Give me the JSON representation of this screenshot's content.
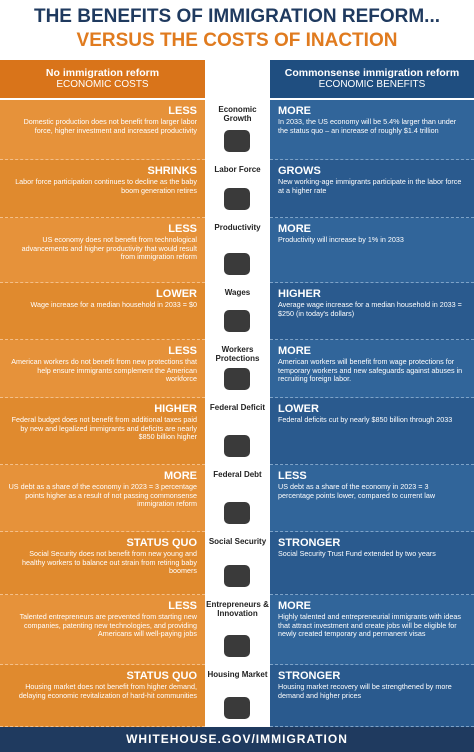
{
  "header": {
    "line1": "THE BENEFITS OF IMMIGRATION REFORM...",
    "line2": "VERSUS THE COSTS OF INACTION"
  },
  "left": {
    "title": "No immigration reform",
    "subtitle": "ECONOMIC COSTS"
  },
  "right": {
    "title": "Commonsense immigration reform",
    "subtitle": "ECONOMIC BENEFITS"
  },
  "rows": [
    {
      "category": "Economic Growth",
      "left_head": "LESS",
      "left_text": "Domestic production does not benefit from larger labor force, higher investment and increased productivity",
      "right_head": "MORE",
      "right_text": "In 2033, the US economy will be 5.4% larger than under the status quo – an increase of roughly $1.4 trillion"
    },
    {
      "category": "Labor Force",
      "left_head": "SHRINKS",
      "left_text": "Labor force participation continues to decline as the baby boom generation retires",
      "right_head": "GROWS",
      "right_text": "New working-age immigrants participate in the labor force at a higher rate"
    },
    {
      "category": "Productivity",
      "left_head": "LESS",
      "left_text": "US economy does not benefit from technological advancements and higher productivity that would result from immigration reform",
      "right_head": "MORE",
      "right_text": "Productivity will increase by 1% in 2033"
    },
    {
      "category": "Wages",
      "left_head": "LOWER",
      "left_text": "Wage increase for a median household in 2033 = $0",
      "right_head": "HIGHER",
      "right_text": "Average wage increase for a median household in 2033 = $250 (in today's dollars)"
    },
    {
      "category": "Workers Protections",
      "left_head": "LESS",
      "left_text": "American workers do not benefit from new protections that help ensure immigrants complement the American workforce",
      "right_head": "MORE",
      "right_text": "American workers will benefit from wage protections for temporary workers and new safeguards against abuses in recruiting foreign labor."
    },
    {
      "category": "Federal Deficit",
      "left_head": "HIGHER",
      "left_text": "Federal budget does not benefit from additional taxes paid by new and legalized immigrants and deficits are nearly $850 billion higher",
      "right_head": "LOWER",
      "right_text": "Federal deficits cut by nearly $850 billion through 2033"
    },
    {
      "category": "Federal Debt",
      "left_head": "MORE",
      "left_text": "US debt as a share of the economy in 2023 = 3 percentage points higher as a result of not passing commonsense immigration reform",
      "right_head": "LESS",
      "right_text": "US debt as a share of the economy in 2023 = 3 percentage points lower, compared to current law"
    },
    {
      "category": "Social Security",
      "left_head": "STATUS QUO",
      "left_text": "Social Security does not benefit from new young and healthy workers to balance out strain from retiring baby boomers",
      "right_head": "STRONGER",
      "right_text": "Social Security Trust Fund extended by two years"
    },
    {
      "category": "Entrepreneurs & Innovation",
      "left_head": "LESS",
      "left_text": "Talented entrepreneurs are prevented from starting new companies, patenting new technologies, and providing Americans will well-paying jobs",
      "right_head": "MORE",
      "right_text": "Highly talented and entrepreneurial immigrants with ideas that attract investment and create jobs will be eligible for newly created temporary and permanent visas"
    },
    {
      "category": "Housing Market",
      "left_head": "STATUS QUO",
      "left_text": "Housing market does not benefit from higher demand, delaying economic revitalization of hard-hit communities",
      "right_head": "STRONGER",
      "right_text": "Housing market recovery will be strengthened by more demand and higher prices"
    }
  ],
  "footer": "WHITEHOUSE.GOV/IMMIGRATION"
}
